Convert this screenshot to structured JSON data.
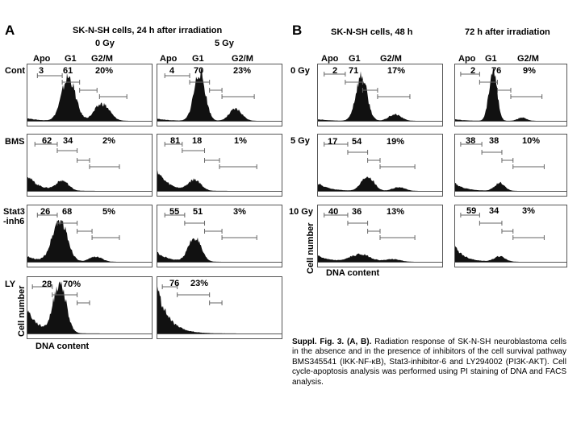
{
  "panel_a": {
    "letter": "A",
    "title": "SK-N-SH cells, 24 h after irradiation",
    "dose_left": "0 Gy",
    "dose_right": "5 Gy",
    "gate_labels": {
      "apo": "Apo",
      "g1": "G1",
      "g2m": "G2/M"
    },
    "rows": [
      {
        "label": "Cont",
        "left": [
          "3",
          "61",
          "20%"
        ],
        "right": [
          "4",
          "70",
          "23%"
        ]
      },
      {
        "label": "BMS",
        "left": [
          "62",
          "34",
          "2%"
        ],
        "right": [
          "81",
          "18",
          "1%"
        ]
      },
      {
        "label": "Stat3\n-inh6",
        "left": [
          "26",
          "68",
          "5%"
        ],
        "right": [
          "55",
          "51",
          "3%"
        ]
      },
      {
        "label": "LY",
        "left": [
          "28",
          "70%"
        ],
        "right": [
          "76",
          "23%"
        ]
      }
    ],
    "y_axis": "Cell number",
    "x_axis": "DNA content"
  },
  "panel_b": {
    "letter": "B",
    "title_left": "SK-N-SH cells, 48 h",
    "title_right": "72 h after irradiation",
    "gate_labels": {
      "apo": "Apo",
      "g1": "G1",
      "g2m": "G2/M"
    },
    "rows": [
      {
        "label": "0 Gy",
        "left": [
          "2",
          "71",
          "17%"
        ],
        "right": [
          "2",
          "76",
          "9%"
        ]
      },
      {
        "label": "5 Gy",
        "left": [
          "17",
          "54",
          "19%"
        ],
        "right": [
          "38",
          "38",
          "10%"
        ]
      },
      {
        "label": "10 Gy",
        "left": [
          "40",
          "36",
          "13%"
        ],
        "right": [
          "59",
          "34",
          "3%"
        ]
      }
    ],
    "y_axis": "Cell number",
    "x_axis": "DNA content"
  },
  "caption": {
    "lead": "Suppl. Fig. 3. (A, B).",
    "body": "Radiation response of SK-N-SH neuroblastoma cells in the absence and in the presence of inhibitors of the cell survival pathway BMS345541 (IKK-NF-κB), Stat3-inhibitor-6 and LY294002 (PI3K-AKT). Cell cycle-apoptosis analysis was performed using PI staining of DNA and FACS analysis."
  }
}
